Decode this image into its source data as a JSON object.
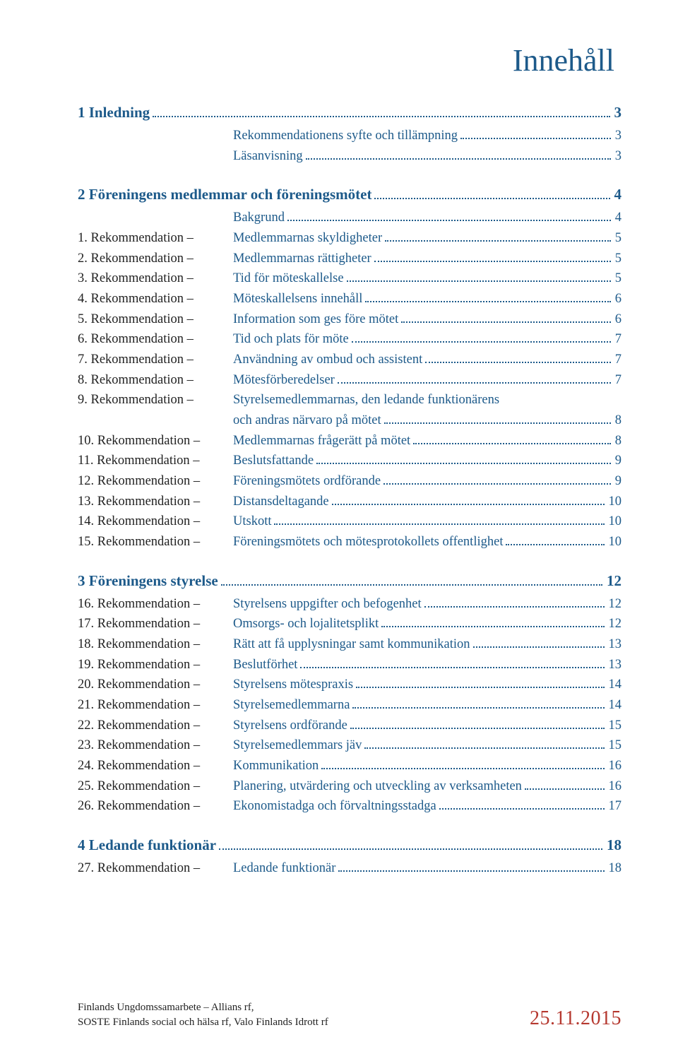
{
  "colors": {
    "heading": "#1d5a8a",
    "link": "#1d5a8a",
    "body": "#222222",
    "date": "#b5382f",
    "background": "#ffffff"
  },
  "typography": {
    "title_fontsize": 44,
    "section_fontsize": 21,
    "row_fontsize": 18.5,
    "footer_fontsize": 15,
    "date_fontsize": 28,
    "font_family": "Georgia, serif"
  },
  "title": "Innehåll",
  "sections": [
    {
      "heading_prefix": "1",
      "heading": "Inledning",
      "page": "3",
      "entries": [
        {
          "prefix": "",
          "label": "Rekommendationens syfte och tillämpning",
          "page": "3",
          "sub": true
        },
        {
          "prefix": "",
          "label": "Läsanvisning",
          "page": "3",
          "sub": true
        }
      ]
    },
    {
      "heading_prefix": "2",
      "heading": "Föreningens medlemmar och föreningsmötet",
      "page": "4",
      "entries": [
        {
          "prefix": "",
          "label": "Bakgrund",
          "page": "4",
          "sub": true
        },
        {
          "prefix": "1. Rekommendation –",
          "label": "Medlemmarnas skyldigheter",
          "page": "5"
        },
        {
          "prefix": "2. Rekommendation –",
          "label": "Medlemmarnas rättigheter",
          "page": "5"
        },
        {
          "prefix": "3. Rekommendation –",
          "label": "Tid för möteskallelse",
          "page": "5"
        },
        {
          "prefix": "4. Rekommendation –",
          "label": "Möteskallelsens innehåll",
          "page": "6"
        },
        {
          "prefix": "5. Rekommendation –",
          "label": "Information som ges före mötet",
          "page": "6"
        },
        {
          "prefix": "6. Rekommendation –",
          "label": "Tid och plats för möte",
          "page": "7"
        },
        {
          "prefix": "7. Rekommendation –",
          "label": "Användning av ombud och assistent",
          "page": "7"
        },
        {
          "prefix": "8. Rekommendation –",
          "label": "Mötesförberedelser",
          "page": "7"
        },
        {
          "prefix": "9. Rekommendation –",
          "label": "Styrelsemedlemmarnas, den ledande funktionärens",
          "label2": "och andras närvaro på mötet",
          "page": "8"
        },
        {
          "prefix": "10. Rekommendation –",
          "label": "Medlemmarnas frågerätt på mötet",
          "page": "8"
        },
        {
          "prefix": "11. Rekommendation –",
          "label": "Beslutsfattande",
          "page": "9"
        },
        {
          "prefix": "12. Rekommendation –",
          "label": "Föreningsmötets ordförande",
          "page": "9"
        },
        {
          "prefix": "13. Rekommendation –",
          "label": "Distansdeltagande",
          "page": "10"
        },
        {
          "prefix": "14. Rekommendation –",
          "label": "Utskott",
          "page": "10"
        },
        {
          "prefix": "15. Rekommendation –",
          "label": "Föreningsmötets och mötesprotokollets offentlighet",
          "page": "10"
        }
      ]
    },
    {
      "heading_prefix": "3",
      "heading": "Föreningens styrelse",
      "page": "12",
      "entries": [
        {
          "prefix": "16. Rekommendation –",
          "label": "Styrelsens uppgifter och befogenhet",
          "page": "12"
        },
        {
          "prefix": "17. Rekommendation –",
          "label": "Omsorgs- och lojalitetsplikt",
          "page": "12"
        },
        {
          "prefix": "18. Rekommendation –",
          "label": "Rätt att få upplysningar samt kommunikation",
          "page": "13"
        },
        {
          "prefix": "19. Rekommendation –",
          "label": "Beslutförhet",
          "page": "13"
        },
        {
          "prefix": "20. Rekommendation –",
          "label": "Styrelsens mötespraxis",
          "page": "14"
        },
        {
          "prefix": "21. Rekommendation –",
          "label": "Styrelsemedlemmarna",
          "page": "14"
        },
        {
          "prefix": "22. Rekommendation –",
          "label": "Styrelsens ordförande",
          "page": "15"
        },
        {
          "prefix": "23. Rekommendation –",
          "label": "Styrelsemedlemmars jäv",
          "page": "15"
        },
        {
          "prefix": "24. Rekommendation –",
          "label": "Kommunikation",
          "page": "16"
        },
        {
          "prefix": "25. Rekommendation –",
          "label": "Planering, utvärdering och utveckling av verksamheten",
          "page": "16"
        },
        {
          "prefix": "26. Rekommendation –",
          "label": "Ekonomistadga och förvaltningsstadga",
          "page": "17"
        }
      ]
    },
    {
      "heading_prefix": "4",
      "heading": "Ledande funktionär",
      "page": "18",
      "entries": [
        {
          "prefix": "27.   Rekommendation –",
          "label": "Ledande funktionär",
          "page": "18"
        }
      ]
    }
  ],
  "footer": {
    "line1": "Finlands Ungdomssamarbete – Allians rf,",
    "line2": "SOSTE Finlands social och hälsa rf, Valo Finlands Idrott rf",
    "date": "25.11.2015"
  }
}
